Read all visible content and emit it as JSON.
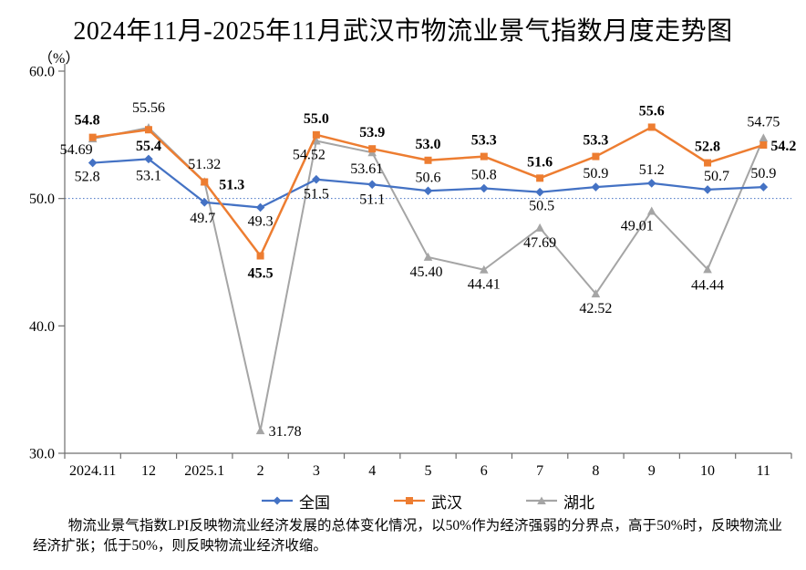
{
  "title": "2024年11月-2025年11月武汉市物流业景气指数月度走势图",
  "y_unit": "（%）",
  "note": "物流业景气指数LPI反映物流业经济发展的总体变化情况，以50%作为经济强弱的分界点，高于50%时，反映物流业经济扩张；低于50%，则反映物流业经济收缩。",
  "chart_data": {
    "type": "line",
    "title": "2024年11月-2025年11月武汉市物流业景气指数月度走势图",
    "ylabel": "（%）",
    "categories": [
      "2024.11",
      "12",
      "2025.1",
      "2",
      "3",
      "4",
      "5",
      "6",
      "7",
      "8",
      "9",
      "10",
      "11"
    ],
    "series": [
      {
        "name": "全国",
        "color": "#4472C4",
        "marker": "diamond",
        "bold_labels": false,
        "values": [
          52.8,
          53.1,
          49.7,
          49.3,
          51.5,
          51.1,
          50.6,
          50.8,
          50.5,
          50.9,
          51.2,
          50.7,
          50.9
        ],
        "labels": [
          "52.8",
          "53.1",
          "49.7",
          "49.3",
          "51.5",
          "51.1",
          "50.6",
          "50.8",
          "50.5",
          "50.9",
          "51.2",
          "50.7",
          "50.9"
        ]
      },
      {
        "name": "武汉",
        "color": "#ED7D31",
        "marker": "square",
        "bold_labels": true,
        "values": [
          54.8,
          55.4,
          51.3,
          45.5,
          55.0,
          53.9,
          53.0,
          53.3,
          51.6,
          53.3,
          55.6,
          52.8,
          54.2
        ],
        "labels": [
          "54.8",
          "55.4",
          "51.3",
          "45.5",
          "55.0",
          "53.9",
          "53.0",
          "53.3",
          "51.6",
          "53.3",
          "55.6",
          "52.8",
          "54.2"
        ]
      },
      {
        "name": "湖北",
        "color": "#A5A5A5",
        "marker": "triangle",
        "bold_labels": false,
        "values": [
          54.69,
          55.56,
          51.32,
          31.78,
          54.52,
          53.61,
          45.4,
          44.41,
          47.69,
          42.52,
          49.01,
          44.44,
          54.75
        ],
        "labels": [
          "54.69",
          "55.56",
          "51.32",
          "31.78",
          "54.52",
          "53.61",
          "45.40",
          "44.41",
          "47.69",
          "42.52",
          "49.01",
          "44.44",
          "54.75"
        ]
      }
    ],
    "ylim": [
      30,
      60
    ],
    "yticks": [
      {
        "value": 60,
        "label": "60.0"
      },
      {
        "value": 50,
        "label": "50.0"
      },
      {
        "value": 40,
        "label": "40.0"
      },
      {
        "value": 30,
        "label": "30.0"
      }
    ],
    "reference_line": {
      "value": 50,
      "color": "#4472C4",
      "style": "dotted"
    },
    "grid": false,
    "legend_position": "bottom"
  }
}
